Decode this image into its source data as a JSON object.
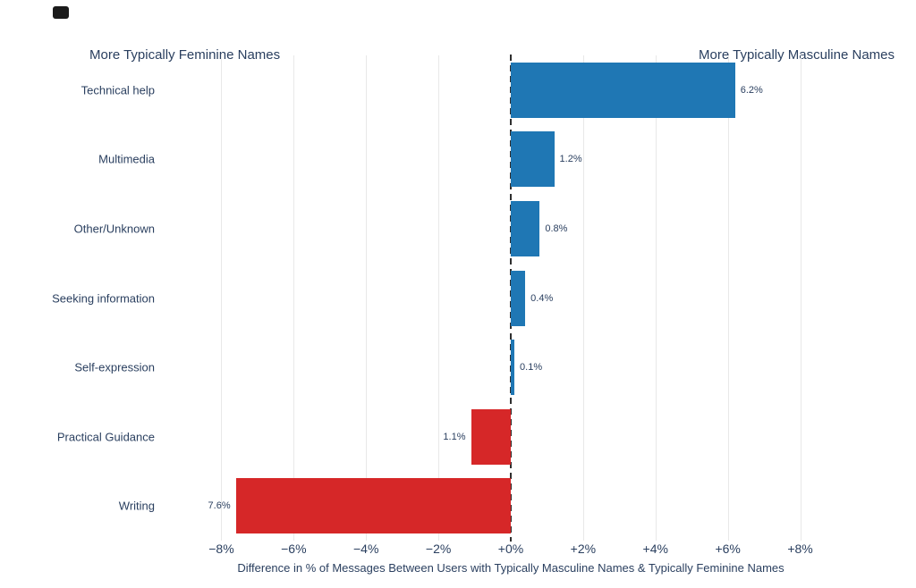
{
  "page": {
    "background": "#ffffff"
  },
  "chart_data": {
    "type": "bar",
    "orientation": "horizontal",
    "left_title": "More Typically Feminine Names",
    "right_title": "More Typically Masculine Names",
    "xlabel": "Difference in % of Messages Between Users with Typically Masculine Names & Typically Feminine Names",
    "categories": [
      "Technical help",
      "Multimedia",
      "Other/Unknown",
      "Seeking information",
      "Self-expression",
      "Practical Guidance",
      "Writing"
    ],
    "values": [
      6.2,
      1.2,
      0.8,
      0.4,
      0.1,
      -1.1,
      -7.6
    ],
    "bar_labels": [
      "6.2%",
      "1.2%",
      "0.8%",
      "0.4%",
      "0.1%",
      "1.1%",
      "7.6%"
    ],
    "x_ticks": [
      {
        "label": "−8%",
        "value": -8
      },
      {
        "label": "−6%",
        "value": -6
      },
      {
        "label": "−4%",
        "value": -4
      },
      {
        "label": "−2%",
        "value": -2
      },
      {
        "label": "+0%",
        "value": 0
      },
      {
        "label": "+2%",
        "value": 2
      },
      {
        "label": "+4%",
        "value": 4
      },
      {
        "label": "+6%",
        "value": 6
      },
      {
        "label": "+8%",
        "value": 8
      }
    ],
    "xlim": [
      -9,
      9
    ],
    "positive_color": "#1f77b4",
    "negative_color": "#d62728",
    "grid": true,
    "grid_color": "#e8e8e8",
    "zero_line_color": "#2f2f2f",
    "text_color": "#2a3f5f",
    "legend_position": "none"
  }
}
